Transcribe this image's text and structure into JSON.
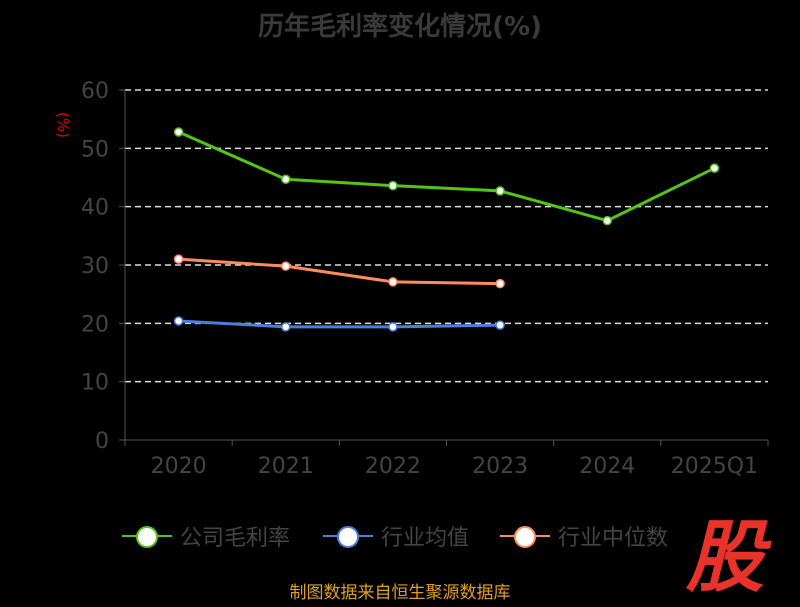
{
  "chart_data": {
    "type": "line",
    "title": "历年毛利率变化情况(%)",
    "ylabel": "(%)",
    "xlabel": "",
    "categories": [
      "2020",
      "2021",
      "2022",
      "2023",
      "2024",
      "2025Q1"
    ],
    "ylim": [
      0,
      60
    ],
    "yticks": [
      "0",
      "10",
      "20",
      "30",
      "40",
      "50",
      "60"
    ],
    "grid": true,
    "legend_position": "bottom",
    "series": [
      {
        "name": "公司毛利率",
        "color": "#52c41a",
        "values": [
          52.8,
          44.7,
          43.6,
          42.7,
          37.6,
          46.6
        ]
      },
      {
        "name": "行业均值",
        "color": "#4a7fdc",
        "values": [
          20.4,
          19.4,
          19.4,
          19.7,
          null,
          null
        ]
      },
      {
        "name": "行业中位数",
        "color": "#ff8c5a",
        "values": [
          31.0,
          29.8,
          27.1,
          26.8,
          null,
          null
        ]
      }
    ]
  },
  "source": "制图数据来自恒生聚源数据库",
  "logo_text": "股"
}
